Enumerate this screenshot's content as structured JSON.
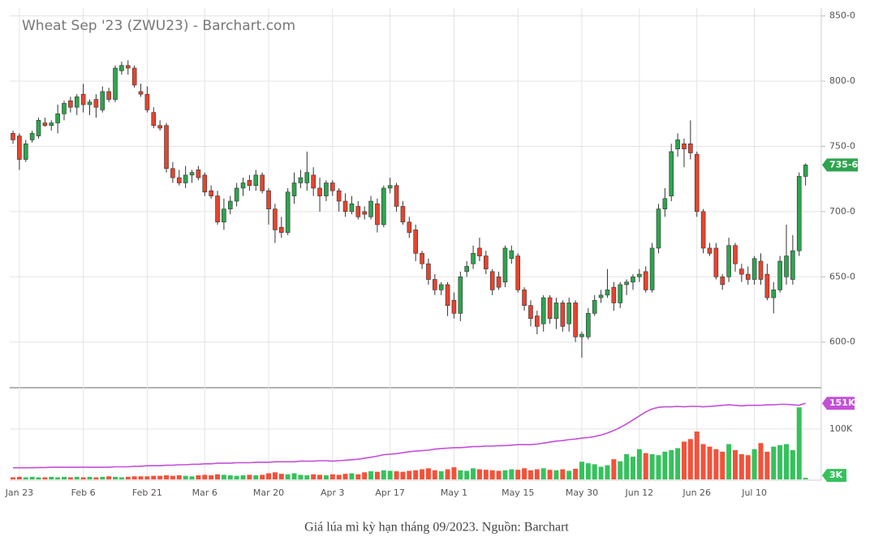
{
  "chart_data": {
    "type": "candlestick",
    "title": "Wheat Sep '23 (ZWU23) - Barchart.com",
    "categories": [
      null,
      "Jan 23",
      null,
      null,
      null,
      null,
      null,
      null,
      null,
      null,
      null,
      "Feb 6",
      null,
      null,
      null,
      null,
      null,
      null,
      null,
      null,
      null,
      "Feb 21",
      null,
      null,
      null,
      null,
      null,
      null,
      null,
      null,
      "Mar 6",
      null,
      null,
      null,
      null,
      null,
      null,
      null,
      null,
      null,
      "Mar 20",
      null,
      null,
      null,
      null,
      null,
      null,
      null,
      null,
      null,
      "Apr 3",
      null,
      null,
      null,
      null,
      null,
      null,
      null,
      null,
      "Apr 17",
      null,
      null,
      null,
      null,
      null,
      null,
      null,
      null,
      null,
      "May 1",
      null,
      null,
      null,
      null,
      null,
      null,
      null,
      null,
      null,
      "May 15",
      null,
      null,
      null,
      null,
      null,
      null,
      null,
      null,
      null,
      "May 30",
      null,
      null,
      null,
      null,
      null,
      null,
      null,
      null,
      "Jun 12",
      null,
      null,
      null,
      null,
      null,
      null,
      null,
      null,
      "Jun 26",
      null,
      null,
      null,
      null,
      null,
      null,
      null,
      null,
      "Jul 10",
      null,
      null,
      null,
      null,
      null,
      null,
      null,
      null
    ],
    "open": [
      760,
      758,
      740,
      755,
      758,
      768,
      766,
      768,
      775,
      785,
      780,
      790,
      782,
      786,
      778,
      792,
      786,
      808,
      812,
      810,
      792,
      790,
      776,
      766,
      766,
      733,
      726,
      722,
      728,
      732,
      728,
      716,
      712,
      692,
      702,
      708,
      718,
      724,
      720,
      728,
      716,
      702,
      688,
      684,
      712,
      722,
      722,
      728,
      718,
      712,
      722,
      716,
      708,
      700,
      704,
      700,
      696,
      706,
      690,
      718,
      720,
      704,
      692,
      686,
      668,
      660,
      648,
      640,
      644,
      632,
      622,
      654,
      660,
      672,
      666,
      654,
      650,
      646,
      664,
      666,
      640,
      628,
      620,
      614,
      634,
      618,
      630,
      614,
      630,
      604,
      604,
      622,
      634,
      636,
      642,
      630,
      644,
      646,
      650,
      654,
      640,
      672,
      702,
      712,
      748,
      752,
      752,
      744,
      700,
      672,
      672,
      650,
      650,
      674,
      656,
      652,
      648,
      662,
      652,
      634,
      640,
      650,
      648,
      670,
      727
    ],
    "high": [
      762,
      760,
      755,
      762,
      772,
      772,
      770,
      782,
      785,
      788,
      790,
      798,
      786,
      790,
      796,
      795,
      812,
      815,
      816,
      812,
      798,
      796,
      780,
      770,
      768,
      738,
      732,
      735,
      732,
      735,
      730,
      720,
      716,
      710,
      712,
      722,
      726,
      728,
      732,
      730,
      718,
      706,
      696,
      718,
      730,
      732,
      746,
      734,
      726,
      724,
      724,
      718,
      714,
      712,
      708,
      704,
      712,
      710,
      720,
      726,
      722,
      708,
      696,
      690,
      670,
      664,
      652,
      646,
      646,
      638,
      654,
      662,
      674,
      680,
      670,
      656,
      654,
      674,
      674,
      668,
      642,
      632,
      624,
      636,
      636,
      634,
      632,
      634,
      632,
      608,
      626,
      636,
      640,
      656,
      646,
      646,
      648,
      652,
      656,
      658,
      676,
      706,
      718,
      752,
      760,
      756,
      770,
      746,
      702,
      676,
      676,
      652,
      680,
      676,
      660,
      658,
      666,
      668,
      660,
      646,
      666,
      690,
      682,
      730,
      737
    ],
    "low": [
      752,
      732,
      738,
      753,
      756,
      765,
      762,
      760,
      770,
      776,
      774,
      776,
      774,
      772,
      776,
      784,
      784,
      805,
      805,
      795,
      788,
      776,
      764,
      762,
      730,
      722,
      720,
      718,
      722,
      724,
      712,
      710,
      690,
      686,
      698,
      704,
      712,
      716,
      716,
      714,
      690,
      676,
      680,
      682,
      706,
      718,
      716,
      712,
      700,
      708,
      712,
      700,
      696,
      698,
      694,
      694,
      694,
      684,
      688,
      714,
      700,
      690,
      680,
      662,
      656,
      644,
      636,
      636,
      620,
      618,
      616,
      650,
      656,
      662,
      652,
      636,
      640,
      642,
      660,
      638,
      624,
      612,
      606,
      608,
      614,
      610,
      608,
      608,
      600,
      588,
      602,
      620,
      630,
      634,
      624,
      626,
      636,
      640,
      646,
      638,
      638,
      668,
      696,
      708,
      742,
      734,
      740,
      696,
      668,
      666,
      648,
      640,
      646,
      654,
      646,
      644,
      644,
      644,
      632,
      622,
      638,
      644,
      644,
      666,
      720
    ],
    "close": [
      755,
      740,
      752,
      760,
      770,
      766,
      768,
      775,
      783,
      780,
      788,
      782,
      784,
      780,
      792,
      786,
      810,
      812,
      810,
      797,
      790,
      778,
      766,
      764,
      733,
      726,
      722,
      728,
      730,
      726,
      715,
      712,
      692,
      702,
      708,
      718,
      722,
      720,
      728,
      716,
      702,
      686,
      684,
      715,
      722,
      726,
      730,
      718,
      712,
      722,
      716,
      708,
      700,
      706,
      696,
      698,
      708,
      690,
      718,
      720,
      704,
      692,
      684,
      668,
      660,
      648,
      640,
      644,
      628,
      622,
      650,
      658,
      668,
      666,
      656,
      640,
      642,
      672,
      670,
      640,
      628,
      618,
      612,
      634,
      618,
      630,
      612,
      630,
      604,
      606,
      622,
      632,
      636,
      640,
      630,
      644,
      646,
      650,
      652,
      640,
      672,
      702,
      710,
      746,
      755,
      748,
      745,
      700,
      672,
      668,
      650,
      644,
      674,
      660,
      652,
      648,
      664,
      648,
      634,
      640,
      662,
      666,
      670,
      727,
      735.75
    ],
    "up_color": "#2ea44f",
    "down_color": "#e8432d",
    "ylim": [
      565,
      856
    ],
    "yticks": [
      {
        "value": 600,
        "label": "600-0"
      },
      {
        "value": 650,
        "label": "650-0"
      },
      {
        "value": 700,
        "label": "700-0"
      },
      {
        "value": 750,
        "label": "750-0"
      },
      {
        "value": 800,
        "label": "800-0"
      },
      {
        "value": 850,
        "label": "850-0"
      }
    ],
    "last_price": {
      "value": 735.75,
      "label": "735-6"
    },
    "grid": true,
    "volume": {
      "values": [
        4000,
        5000,
        4000,
        5000,
        4000,
        4000,
        5000,
        4000,
        5000,
        4000,
        5000,
        4000,
        5000,
        4000,
        5000,
        6000,
        5000,
        4000,
        5000,
        6000,
        6000,
        6000,
        7000,
        7000,
        8000,
        7000,
        8000,
        7000,
        6000,
        8000,
        9000,
        8000,
        10000,
        9000,
        8000,
        7000,
        8000,
        9000,
        8000,
        9000,
        12000,
        14000,
        11000,
        10000,
        12000,
        9000,
        8000,
        10000,
        9000,
        8000,
        10000,
        9000,
        11000,
        12000,
        10000,
        14000,
        16000,
        15000,
        18000,
        17000,
        16000,
        15000,
        17000,
        18000,
        20000,
        22000,
        18000,
        16000,
        20000,
        24000,
        18000,
        17000,
        22000,
        20000,
        19000,
        18000,
        17000,
        18000,
        20000,
        19000,
        22000,
        18000,
        20000,
        22000,
        19000,
        18000,
        20000,
        17000,
        21000,
        35000,
        32000,
        30000,
        25000,
        28000,
        40000,
        36000,
        50000,
        45000,
        60000,
        52000,
        50000,
        48000,
        55000,
        58000,
        62000,
        75000,
        80000,
        95000,
        70000,
        65000,
        60000,
        55000,
        70000,
        58000,
        50000,
        48000,
        60000,
        72000,
        55000,
        65000,
        68000,
        70000,
        58000,
        143000,
        3000
      ],
      "up_color": "#35c25c",
      "down_color": "#f4513a",
      "ylim": [
        0,
        182000
      ],
      "yticks": [
        {
          "value": 100000,
          "label": "100K"
        }
      ],
      "last": {
        "value": 3000,
        "label": "3K"
      }
    },
    "open_interest": {
      "values": [
        23000,
        23000,
        23000,
        23000,
        23500,
        23500,
        24000,
        24000,
        24000,
        24000,
        24000,
        24000,
        24000,
        24000,
        24000,
        24000,
        25000,
        25000,
        25000,
        26000,
        26000,
        27000,
        27000,
        27000,
        28000,
        28000,
        29000,
        29000,
        30000,
        30000,
        31000,
        31000,
        32000,
        32000,
        32000,
        33000,
        33000,
        33000,
        34000,
        34000,
        34000,
        35000,
        35000,
        35000,
        35000,
        36000,
        36000,
        36000,
        37000,
        37000,
        36000,
        37000,
        38000,
        39000,
        40000,
        42000,
        44000,
        46000,
        49000,
        50000,
        51000,
        53000,
        55000,
        56000,
        57000,
        58000,
        60000,
        61000,
        62000,
        63000,
        63000,
        64000,
        65000,
        65000,
        66000,
        66000,
        67000,
        67000,
        68000,
        69000,
        69000,
        69000,
        70000,
        72000,
        74000,
        76000,
        77000,
        79000,
        80000,
        82000,
        83000,
        85000,
        88000,
        92000,
        97000,
        103000,
        110000,
        118000,
        126000,
        134000,
        140000,
        143000,
        144000,
        144000,
        145000,
        144000,
        145000,
        145000,
        144000,
        145000,
        146000,
        147000,
        148000,
        147000,
        146000,
        147000,
        147000,
        147000,
        148000,
        148000,
        149000,
        149000,
        148000,
        147000,
        151000
      ],
      "color": "#c44fd8",
      "last": {
        "value": 151000,
        "label": "151K"
      }
    }
  },
  "caption": "Giá lúa mì kỳ hạn tháng 09/2023. Nguồn: Barchart"
}
